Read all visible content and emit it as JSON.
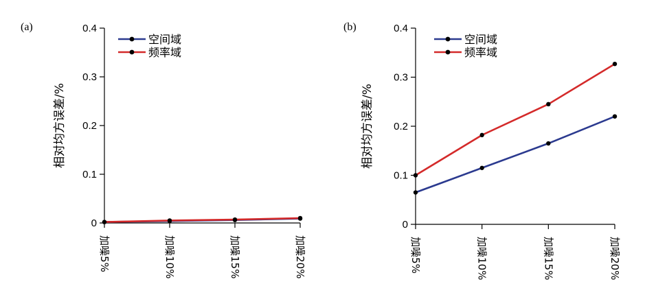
{
  "chart_data": [
    {
      "type": "line",
      "panel_label": "(a)",
      "ylabel": "相对均方误差/%",
      "categories": [
        "加噪5%",
        "加噪10%",
        "加噪15%",
        "加噪20%"
      ],
      "ylim": [
        0,
        0.4
      ],
      "yticks": [
        "0",
        "0.1",
        "0.2",
        "0.3",
        "0.4"
      ],
      "legend_position": "top-left",
      "series": [
        {
          "name": "空间域",
          "color": "#2b3a8f",
          "values": [
            0.002,
            0.004,
            0.006,
            0.009
          ]
        },
        {
          "name": "频率域",
          "color": "#d42a2a",
          "values": [
            0.002,
            0.005,
            0.007,
            0.01
          ]
        }
      ]
    },
    {
      "type": "line",
      "panel_label": "(b)",
      "ylabel": "相对均方误差/%",
      "categories": [
        "加噪5%",
        "加噪10%",
        "加噪15%",
        "加噪20%"
      ],
      "ylim": [
        0,
        0.4
      ],
      "yticks": [
        "0",
        "0.1",
        "0.2",
        "0.3",
        "0.4"
      ],
      "legend_position": "top-left",
      "series": [
        {
          "name": "空间域",
          "color": "#2b3a8f",
          "values": [
            0.065,
            0.115,
            0.165,
            0.22
          ]
        },
        {
          "name": "频率域",
          "color": "#d42a2a",
          "values": [
            0.1,
            0.182,
            0.245,
            0.327
          ]
        }
      ]
    }
  ]
}
